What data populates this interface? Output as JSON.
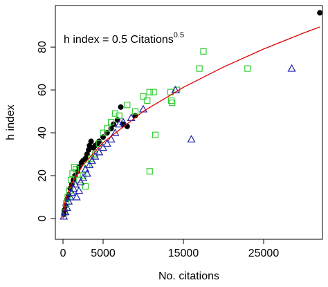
{
  "chart_data": {
    "type": "scatter",
    "annotation": {
      "text": "h index = 0.5 Citations",
      "superscript": "0.5"
    },
    "x_label": "No. citations",
    "y_label": "h index",
    "xlim": [
      -950,
      32330
    ],
    "ylim": [
      -9.7,
      99.4
    ],
    "xticks": [
      0,
      5000,
      15000,
      25000
    ],
    "yticks": [
      0,
      20,
      40,
      60,
      80
    ],
    "series": [
      {
        "marker": "circle",
        "color": "#000000",
        "x": [
          100,
          200,
          300,
          500,
          700,
          900,
          1100,
          1300,
          1500,
          1800,
          2000,
          2300,
          2500,
          2800,
          3000,
          3200,
          3300,
          3500,
          3800,
          4000,
          4300,
          4500,
          5000,
          5500,
          6000,
          6300,
          6800,
          7200,
          7500,
          8000,
          9000,
          32000
        ],
        "values": [
          2,
          4,
          6,
          9,
          11,
          14,
          16,
          18,
          20,
          22,
          24,
          26,
          27,
          28,
          30,
          32,
          34,
          36,
          33,
          34,
          35,
          36,
          38,
          40,
          42,
          44,
          46,
          52,
          44,
          43,
          48,
          96
        ]
      },
      {
        "marker": "square",
        "color": "#33cc33",
        "x": [
          200,
          400,
          600,
          800,
          1000,
          1200,
          1400,
          1600,
          2000,
          2500,
          2800,
          3000,
          3500,
          4000,
          4500,
          5000,
          5500,
          6000,
          6500,
          7000,
          8000,
          9000,
          10000,
          10500,
          10800,
          11300,
          11500,
          10800,
          13400,
          13500,
          13600,
          14200,
          17000,
          17500,
          23000
        ],
        "values": [
          3,
          7,
          10,
          13,
          18,
          21,
          24,
          23,
          18,
          20,
          15,
          25,
          28,
          30,
          35,
          40,
          42,
          45,
          49,
          48,
          53,
          50,
          57,
          55,
          59,
          59,
          39,
          22,
          59,
          55,
          54,
          60,
          70,
          78,
          70
        ]
      },
      {
        "marker": "triangle",
        "color": "#2222aa",
        "x": [
          100,
          300,
          500,
          700,
          900,
          1100,
          1300,
          1500,
          1700,
          2000,
          2200,
          2500,
          2800,
          3000,
          3300,
          3600,
          4000,
          4500,
          5000,
          5500,
          6000,
          6500,
          7000,
          7500,
          8500,
          10000,
          14000,
          16000,
          28500
        ],
        "values": [
          1,
          3,
          5,
          8,
          10,
          12,
          14,
          16,
          10,
          13,
          17,
          19,
          23,
          21,
          25,
          27,
          29,
          31,
          33,
          35,
          37,
          40,
          44,
          45,
          47,
          51,
          60,
          37,
          70
        ]
      },
      {
        "marker": "line",
        "color": "#dd0000",
        "x": [
          0,
          250,
          1000,
          2500,
          5000,
          10000,
          15000,
          20000,
          25000,
          30000,
          32000
        ],
        "values": [
          0,
          7.9,
          15.8,
          25,
          35.4,
          50,
          61.2,
          70.7,
          79.1,
          86.6,
          89.4
        ]
      }
    ]
  }
}
